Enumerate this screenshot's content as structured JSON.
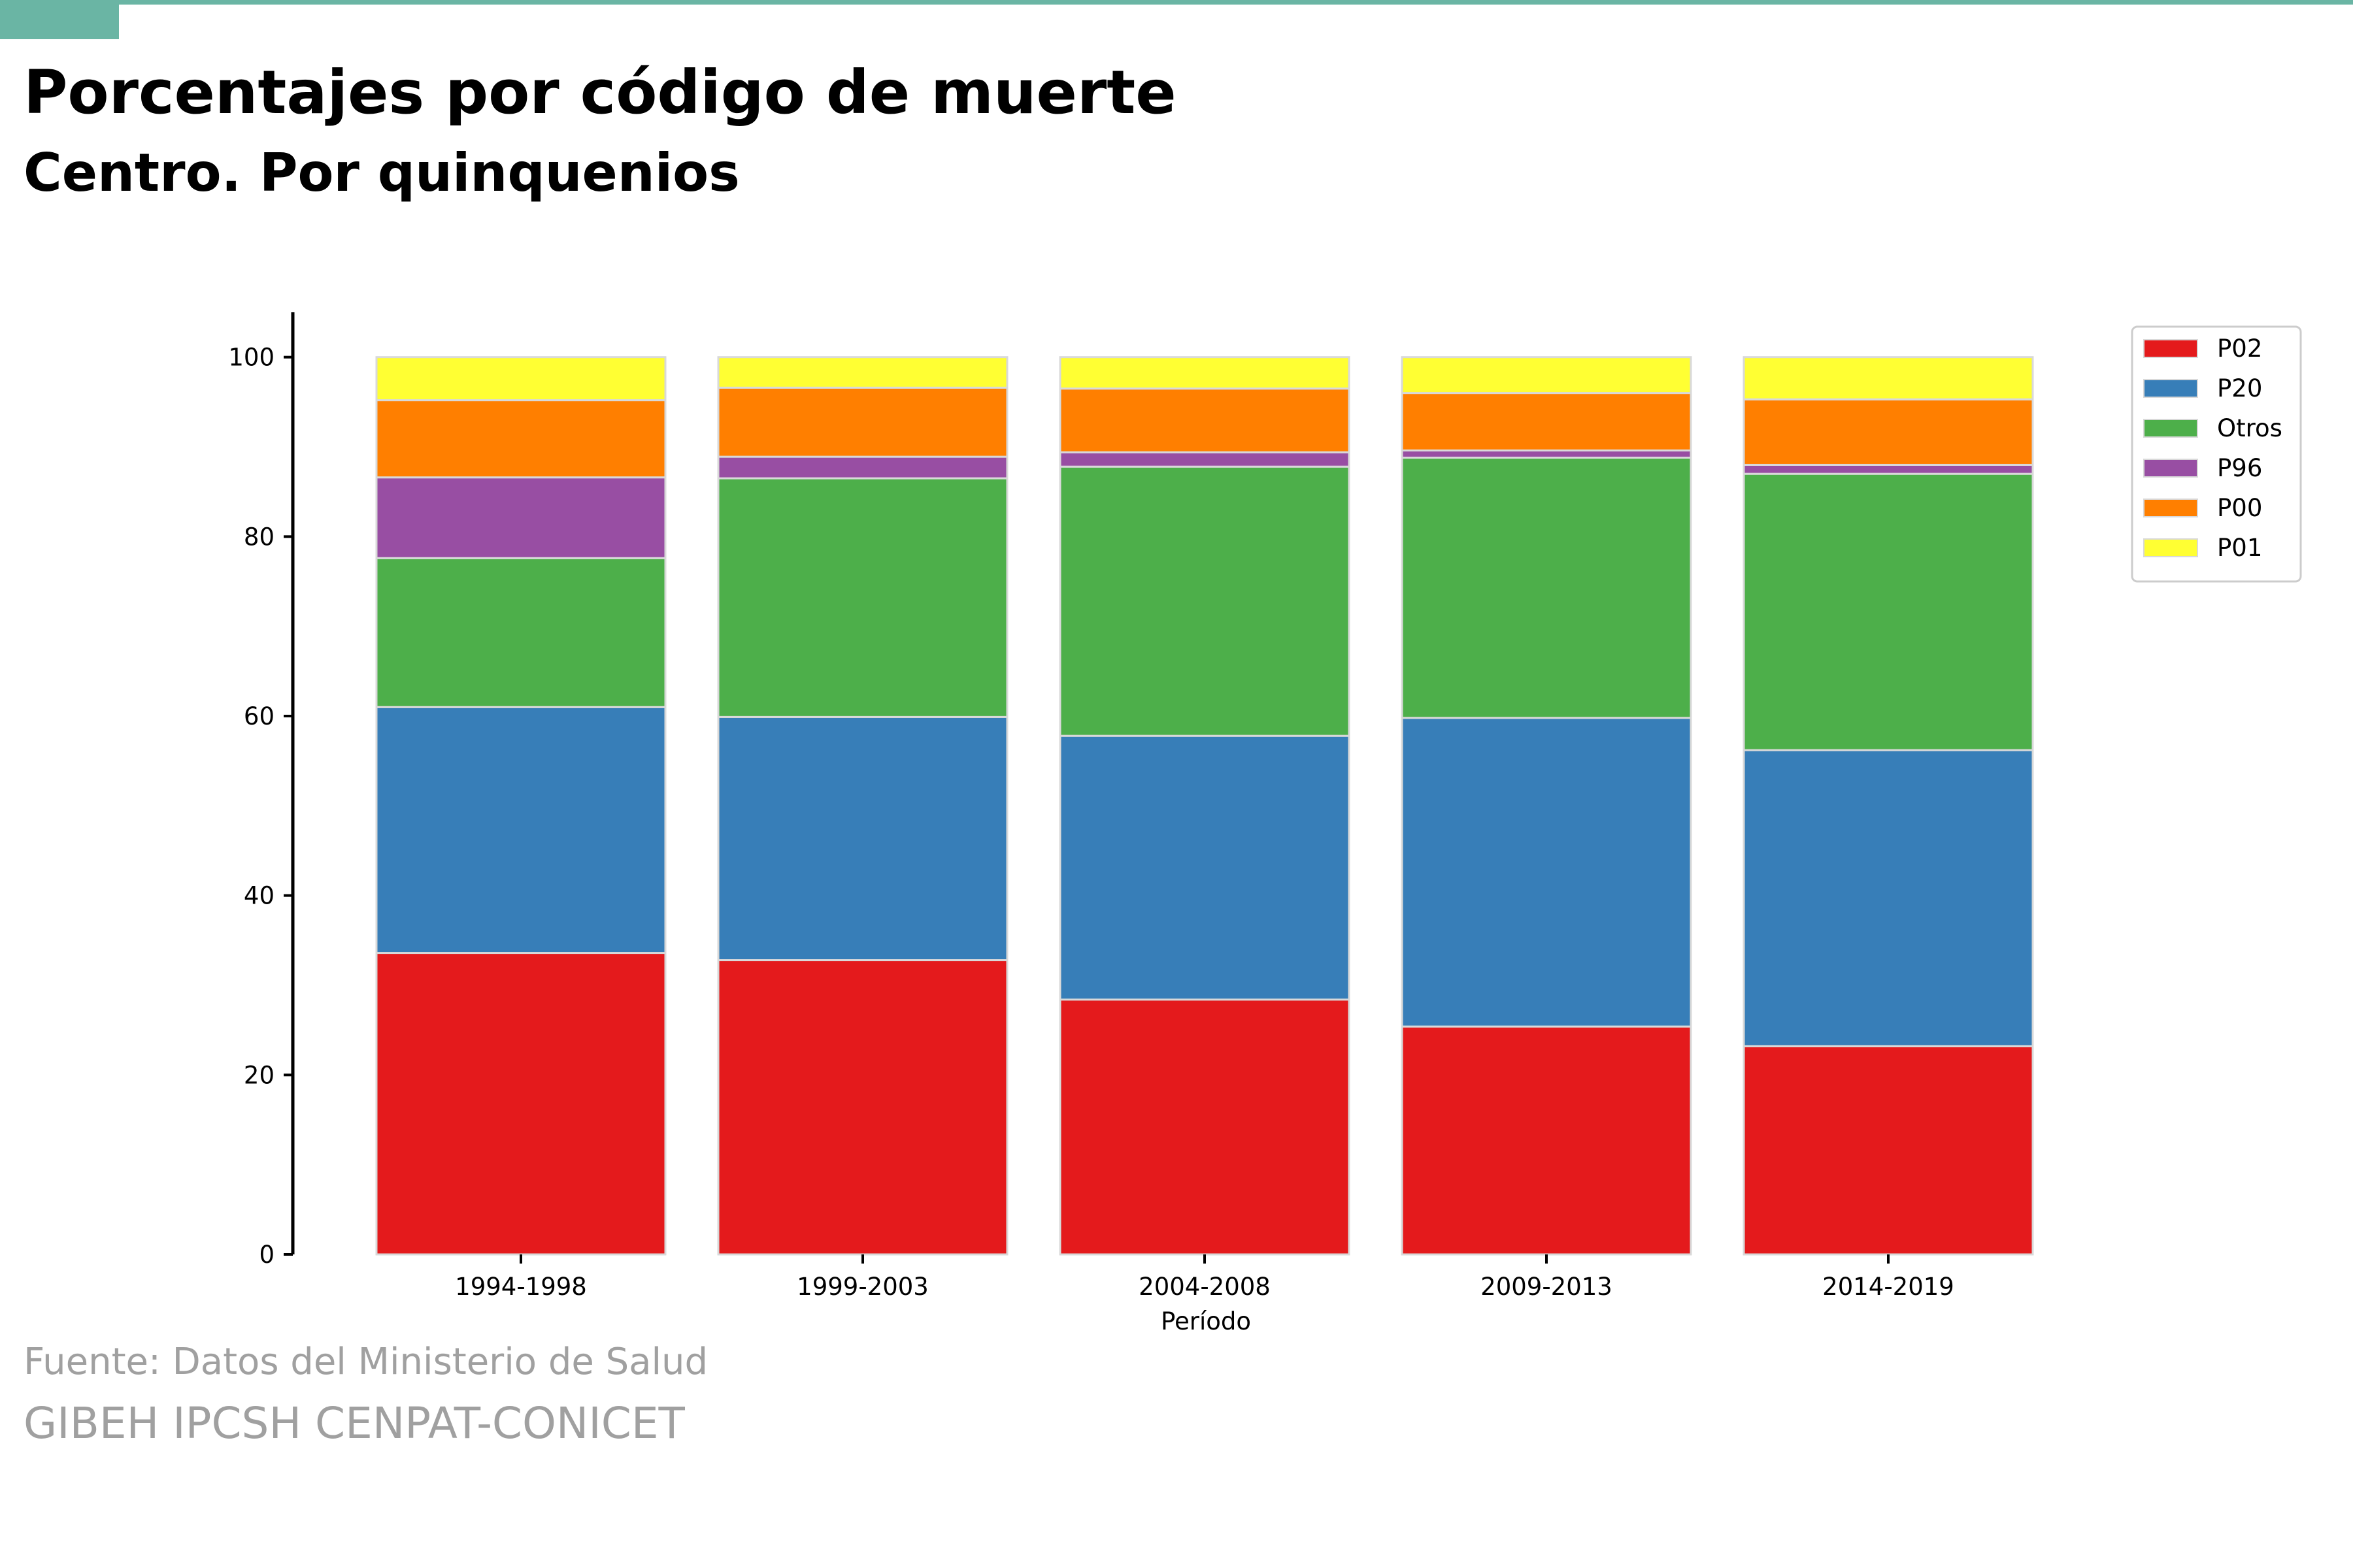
{
  "header": {
    "title": "Porcentajes por código de muerte",
    "subtitle": "Centro. Por quinquenios"
  },
  "footer": {
    "source": "Fuente: Datos del Ministerio de Salud",
    "credit": "GIBEH IPCSH CENPAT-CONICET"
  },
  "colors": {
    "accent": "#6ab5a4",
    "footer_text": "#a0a0a0"
  },
  "chart_data": {
    "type": "bar",
    "stacked": true,
    "title": "Porcentajes por código de muerte",
    "subtitle": "Centro. Por quinquenios",
    "xlabel": "Período",
    "ylabel": "",
    "categories": [
      "1994-1998",
      "1999-2003",
      "2004-2008",
      "2009-2013",
      "2014-2019"
    ],
    "ylim": [
      0,
      105
    ],
    "yticks": [
      0,
      20,
      40,
      60,
      80,
      100
    ],
    "grid": false,
    "legend_position": "top-right",
    "series": [
      {
        "name": "P02",
        "color": "#e41a1c",
        "values": [
          33.6,
          32.8,
          28.4,
          25.4,
          23.2
        ]
      },
      {
        "name": "P20",
        "color": "#377eb8",
        "values": [
          27.4,
          27.1,
          29.4,
          34.4,
          33.0
        ]
      },
      {
        "name": "Otros",
        "color": "#4daf4a",
        "values": [
          16.6,
          26.6,
          30.0,
          29.0,
          30.8
        ]
      },
      {
        "name": "P96",
        "color": "#984ea3",
        "values": [
          9.0,
          2.4,
          1.6,
          0.8,
          1.0
        ]
      },
      {
        "name": "P00",
        "color": "#ff7f00",
        "values": [
          8.6,
          7.7,
          7.1,
          6.4,
          7.3
        ]
      },
      {
        "name": "P01",
        "color": "#ffff33",
        "values": [
          4.8,
          3.4,
          3.5,
          4.0,
          4.7
        ]
      }
    ]
  }
}
